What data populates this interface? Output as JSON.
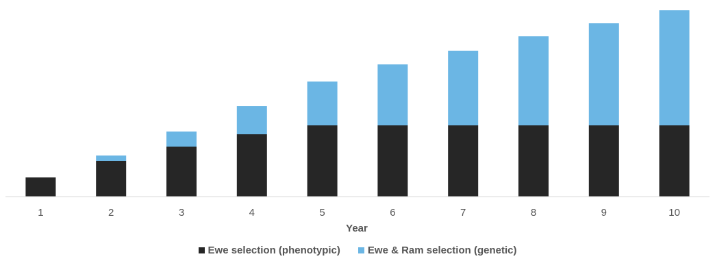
{
  "chart_data": {
    "type": "bar",
    "stacked": true,
    "categories": [
      "1",
      "2",
      "3",
      "4",
      "5",
      "6",
      "7",
      "8",
      "9",
      "10"
    ],
    "series": [
      {
        "name": "Ewe selection (phenotypic)",
        "color": "#262626",
        "values": [
          28,
          52,
          73,
          91,
          104,
          104,
          104,
          104,
          104,
          104
        ]
      },
      {
        "name": "Ewe & Ram selection (genetic)",
        "color": "#6bb6e4",
        "values": [
          0,
          8,
          22,
          41,
          64,
          89,
          109,
          130,
          149,
          168
        ]
      }
    ],
    "xlabel": "Year",
    "ylabel": "",
    "ylim": [
      0,
      272
    ],
    "grid": false,
    "legend_position": "bottom"
  }
}
